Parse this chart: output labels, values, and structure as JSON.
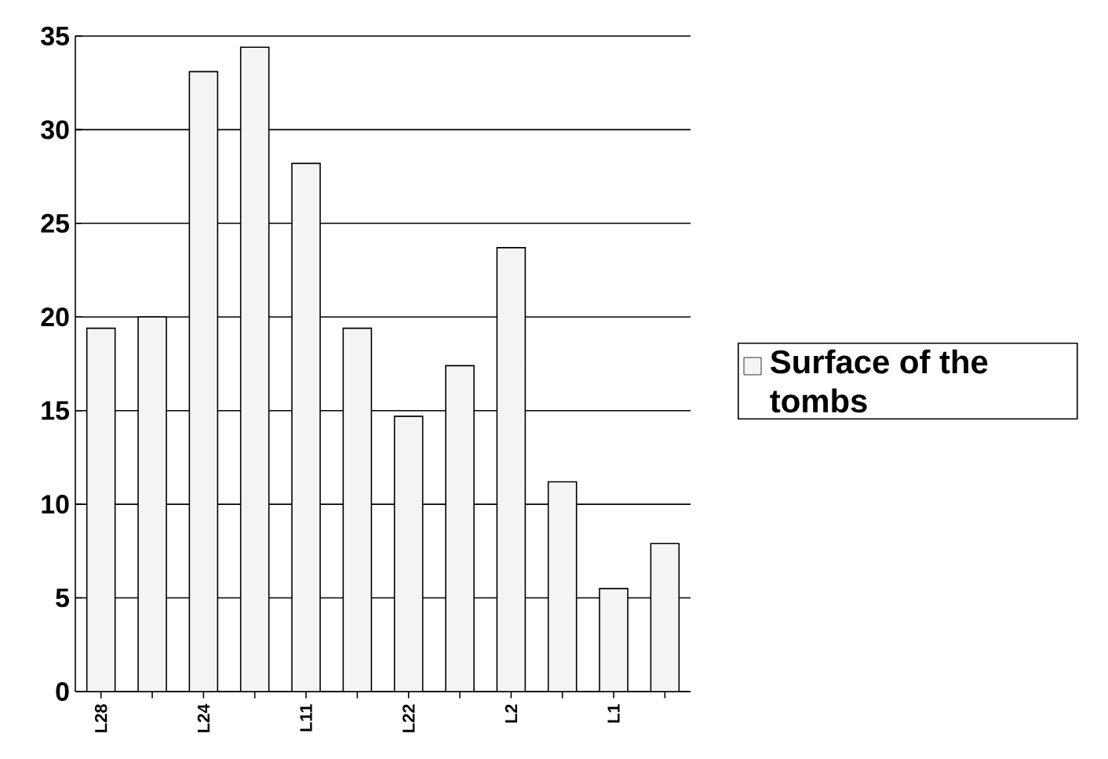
{
  "chart_data": {
    "type": "bar",
    "categories": [
      "L28",
      null,
      "L24",
      null,
      "L11",
      null,
      "L22",
      null,
      "L2",
      null,
      "L1",
      null
    ],
    "series": [
      {
        "name": "Surface of the tombs",
        "color": "#f4f4f4",
        "values": [
          19.4,
          20,
          33.1,
          34.4,
          28.2,
          19.4,
          14.7,
          17.4,
          23.7,
          11.2,
          5.5,
          7.9
        ]
      }
    ],
    "ylim": [
      0,
      35
    ],
    "yticks": [
      0,
      5,
      10,
      15,
      20,
      25,
      30,
      35
    ],
    "grid": "y",
    "legend": "right"
  }
}
